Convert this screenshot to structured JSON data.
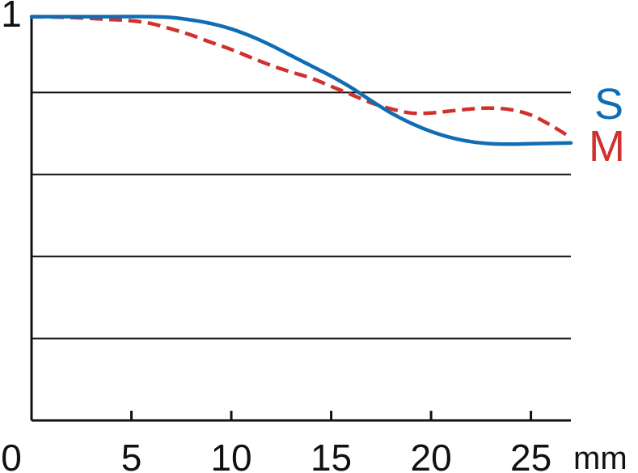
{
  "chart_data": {
    "type": "line",
    "x_unit": "mm",
    "xlim": [
      0,
      27
    ],
    "ylim": [
      0,
      1
    ],
    "y_ticks": [
      {
        "value": 1,
        "label": "1"
      }
    ],
    "x_ticks": [
      {
        "value": 0,
        "label": "0"
      },
      {
        "value": 5,
        "label": "5"
      },
      {
        "value": 10,
        "label": "10"
      },
      {
        "value": 15,
        "label": "15"
      },
      {
        "value": 20,
        "label": "20"
      },
      {
        "value": 25,
        "label": "25"
      }
    ],
    "gridlines_y": [
      0.2,
      0.4,
      0.6,
      0.8
    ],
    "grid": true,
    "legend_placement": "right",
    "series": [
      {
        "name": "S",
        "color": "#0f6db5",
        "dash": "solid",
        "x": [
          0,
          2,
          4,
          6,
          7,
          8,
          9,
          10,
          11,
          12,
          13,
          14,
          15,
          16,
          17,
          18,
          19,
          20,
          21,
          22,
          23,
          24,
          25,
          26,
          27
        ],
        "values": [
          0.985,
          0.985,
          0.985,
          0.985,
          0.983,
          0.977,
          0.968,
          0.955,
          0.937,
          0.915,
          0.89,
          0.865,
          0.84,
          0.812,
          0.78,
          0.75,
          0.725,
          0.705,
          0.69,
          0.68,
          0.675,
          0.674,
          0.675,
          0.676,
          0.677
        ]
      },
      {
        "name": "M",
        "color": "#d0312d",
        "dash": "dashed",
        "x": [
          0,
          2,
          4,
          5,
          6,
          7,
          8,
          9,
          10,
          11,
          12,
          13,
          14,
          15,
          16,
          17,
          18,
          19,
          20,
          21,
          22,
          23,
          24,
          25,
          26,
          27
        ],
        "values": [
          0.985,
          0.983,
          0.978,
          0.975,
          0.968,
          0.955,
          0.94,
          0.922,
          0.905,
          0.885,
          0.866,
          0.85,
          0.835,
          0.815,
          0.795,
          0.775,
          0.76,
          0.75,
          0.75,
          0.755,
          0.76,
          0.762,
          0.758,
          0.745,
          0.72,
          0.69
        ]
      }
    ]
  }
}
